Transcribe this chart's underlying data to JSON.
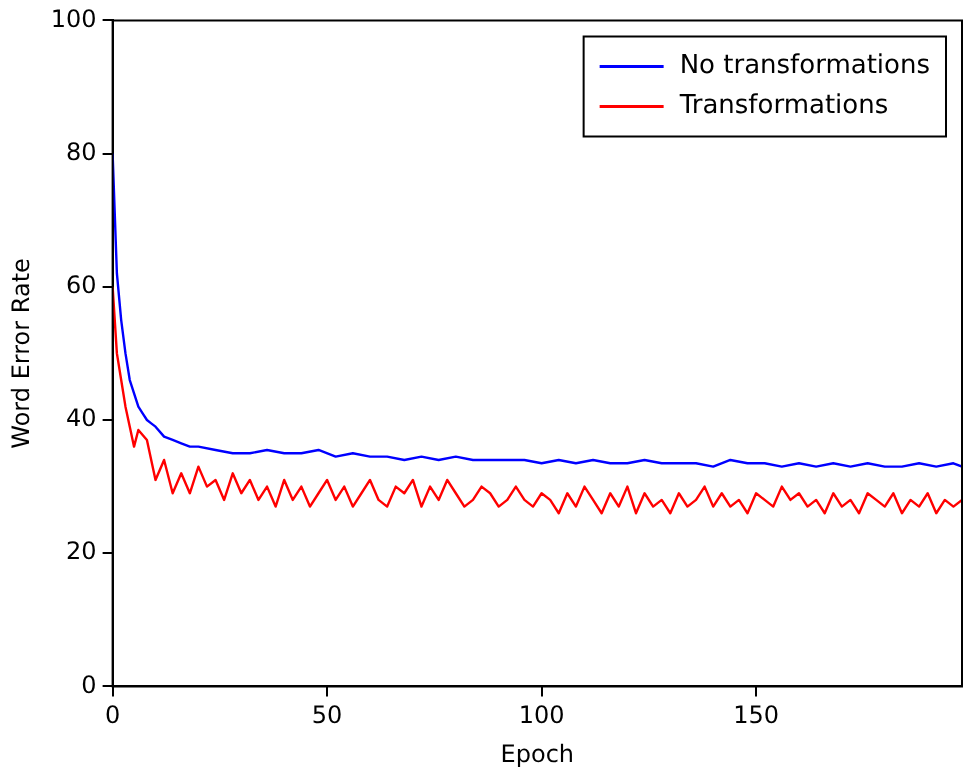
{
  "chart_data": {
    "type": "line",
    "xlabel": "Epoch",
    "ylabel": "Word Error Rate",
    "xlim": [
      0,
      198
    ],
    "xticks": [
      0,
      50,
      100,
      150
    ],
    "ylim": [
      0,
      100
    ],
    "yticks": [
      0,
      20,
      40,
      60,
      80,
      100
    ],
    "grid": false,
    "legend": "top right",
    "marker": "none",
    "line_style": "solid",
    "series": [
      {
        "name": "No transformations",
        "color": "#0000ff",
        "x": [
          0,
          1,
          2,
          3,
          4,
          5,
          6,
          7,
          8,
          9,
          10,
          12,
          14,
          16,
          18,
          20,
          24,
          28,
          32,
          36,
          40,
          44,
          48,
          52,
          56,
          60,
          64,
          68,
          72,
          76,
          80,
          84,
          88,
          92,
          96,
          100,
          104,
          108,
          112,
          116,
          120,
          124,
          128,
          132,
          136,
          140,
          144,
          148,
          152,
          156,
          160,
          164,
          168,
          172,
          176,
          180,
          184,
          188,
          192,
          196,
          198
        ],
        "values": [
          80,
          62,
          55,
          50,
          46,
          44,
          42,
          41,
          40,
          39.5,
          39,
          37.5,
          37,
          36.5,
          36,
          36,
          35.5,
          35,
          35,
          35.5,
          35,
          35,
          35.5,
          34.5,
          35,
          34.5,
          34.5,
          34,
          34.5,
          34,
          34.5,
          34,
          34,
          34,
          34,
          33.5,
          34,
          33.5,
          34,
          33.5,
          33.5,
          34,
          33.5,
          33.5,
          33.5,
          33,
          34,
          33.5,
          33.5,
          33,
          33.5,
          33,
          33.5,
          33,
          33.5,
          33,
          33,
          33.5,
          33,
          33.5,
          33
        ]
      },
      {
        "name": "Transformations",
        "color": "#ff0000",
        "x": [
          0,
          1,
          2,
          3,
          4,
          5,
          6,
          8,
          10,
          12,
          14,
          16,
          18,
          20,
          22,
          24,
          26,
          28,
          30,
          32,
          34,
          36,
          38,
          40,
          42,
          44,
          46,
          48,
          50,
          52,
          54,
          56,
          58,
          60,
          62,
          64,
          66,
          68,
          70,
          72,
          74,
          76,
          78,
          80,
          82,
          84,
          86,
          88,
          90,
          92,
          94,
          96,
          98,
          100,
          102,
          104,
          106,
          108,
          110,
          112,
          114,
          116,
          118,
          120,
          122,
          124,
          126,
          128,
          130,
          132,
          134,
          136,
          138,
          140,
          142,
          144,
          146,
          148,
          150,
          152,
          154,
          156,
          158,
          160,
          162,
          164,
          166,
          168,
          170,
          172,
          174,
          176,
          178,
          180,
          182,
          184,
          186,
          188,
          190,
          192,
          194,
          196,
          198
        ],
        "values": [
          60,
          50,
          46,
          42,
          39,
          36,
          38.5,
          37,
          31,
          34,
          29,
          32,
          29,
          33,
          30,
          31,
          28,
          32,
          29,
          31,
          28,
          30,
          27,
          31,
          28,
          30,
          27,
          29,
          31,
          28,
          30,
          27,
          29,
          31,
          28,
          27,
          30,
          29,
          31,
          27,
          30,
          28,
          31,
          29,
          27,
          28,
          30,
          29,
          27,
          28,
          30,
          28,
          27,
          29,
          28,
          26,
          29,
          27,
          30,
          28,
          26,
          29,
          27,
          30,
          26,
          29,
          27,
          28,
          26,
          29,
          27,
          28,
          30,
          27,
          29,
          27,
          28,
          26,
          29,
          28,
          27,
          30,
          28,
          29,
          27,
          28,
          26,
          29,
          27,
          28,
          26,
          29,
          28,
          27,
          29,
          26,
          28,
          27,
          29,
          26,
          28,
          27,
          28
        ]
      }
    ]
  }
}
